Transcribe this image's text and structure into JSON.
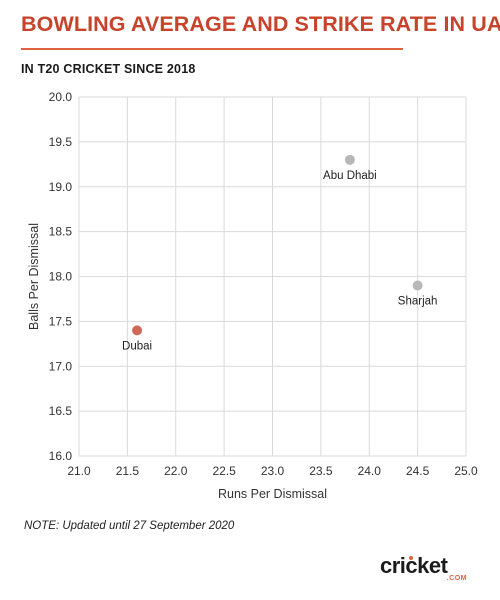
{
  "header": {
    "title": "BOWLING AVERAGE AND STRIKE RATE IN UAE",
    "subtitle": "IN T20 CRICKET SINCE 2018"
  },
  "footer": {
    "note": "NOTE: Updated until 27 September 2020",
    "logo_text": "cricket",
    "logo_suffix": ".COM"
  },
  "colors": {
    "title": "#c8432c",
    "highlight": "#d0695a",
    "point": "#b8b8b8",
    "grid": "#d9d9d9"
  },
  "chart_data": {
    "type": "scatter",
    "title": "BOWLING AVERAGE AND STRIKE RATE IN UAE",
    "subtitle": "IN T20 CRICKET SINCE 2018",
    "xlabel": "Runs Per Dismissal",
    "ylabel": "Balls Per Dismissal",
    "xlim": [
      21.0,
      25.0
    ],
    "ylim": [
      16.0,
      20.0
    ],
    "xticks": [
      "21.0",
      "21.5",
      "22.0",
      "22.5",
      "23.0",
      "23.5",
      "24.0",
      "24.5",
      "25.0"
    ],
    "yticks": [
      "16.0",
      "16.5",
      "17.0",
      "17.5",
      "18.0",
      "18.5",
      "19.0",
      "19.5",
      "20.0"
    ],
    "grid": true,
    "points": [
      {
        "label": "Dubai",
        "x": 21.6,
        "y": 17.4,
        "highlight": true
      },
      {
        "label": "Abu Dhabi",
        "x": 23.8,
        "y": 19.3,
        "highlight": false
      },
      {
        "label": "Sharjah",
        "x": 24.5,
        "y": 17.9,
        "highlight": false
      }
    ]
  }
}
